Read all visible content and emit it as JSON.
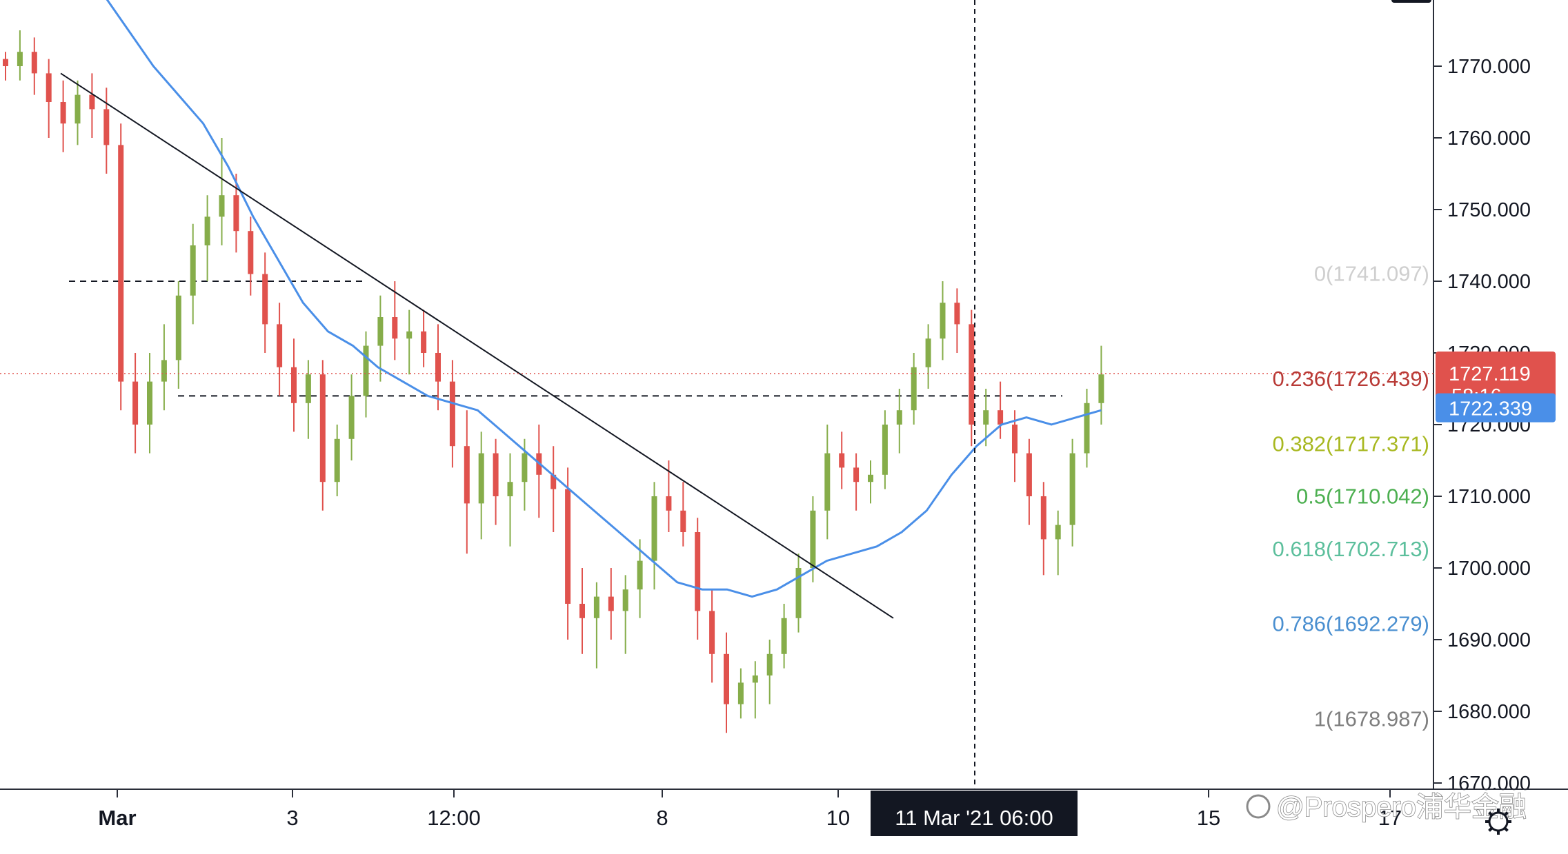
{
  "chart_data": {
    "type": "candlestick",
    "ylim": [
      1666,
      1780
    ],
    "y_ticks": [
      "1670.000",
      "1680.000",
      "1690.000",
      "1700.000",
      "1710.000",
      "1720.000",
      "1730.000",
      "1740.000",
      "1750.000",
      "1760.000",
      "1770.000"
    ],
    "x_labels": [
      "Mar",
      "3",
      "12:00",
      "8",
      "10",
      "15",
      "17"
    ],
    "crosshair_label": "11 Mar '21   06:00",
    "fib_levels": [
      {
        "ratio": "0",
        "value": 1741.097,
        "label": "0(1741.097)",
        "color": "#cfcfcf"
      },
      {
        "ratio": "0.236",
        "value": 1726.439,
        "label": "0.236(1726.439)",
        "color": "#b83a36"
      },
      {
        "ratio": "0.382",
        "value": 1717.371,
        "label": "0.382(1717.371)",
        "color": "#a8b820"
      },
      {
        "ratio": "0.5",
        "value": 1710.042,
        "label": "0.5(1710.042)",
        "color": "#4caf50"
      },
      {
        "ratio": "0.618",
        "value": 1702.713,
        "label": "0.618(1702.713)",
        "color": "#5cbf9c"
      },
      {
        "ratio": "0.786",
        "value": 1692.279,
        "label": "0.786(1692.279)",
        "color": "#4a8fd0"
      },
      {
        "ratio": "1",
        "value": 1678.987,
        "label": "1(1678.987)",
        "color": "#7e7e7e"
      }
    ],
    "last_price": {
      "value": 1727.119,
      "label": "1727.119",
      "countdown": "58:16",
      "color": "#e0524d"
    },
    "ma_value": {
      "value": 1722.339,
      "label": "1722.339",
      "color": "#4a8fe8"
    },
    "horizontal_lines": [
      1740,
      1724
    ],
    "trendline": {
      "from": [
        0,
        1769
      ],
      "to": [
        62,
        1693
      ]
    },
    "candles": [
      [
        1771,
        1772,
        1768,
        1770
      ],
      [
        1770,
        1775,
        1768,
        1772
      ],
      [
        1772,
        1774,
        1766,
        1769
      ],
      [
        1769,
        1771,
        1760,
        1765
      ],
      [
        1765,
        1768,
        1758,
        1762
      ],
      [
        1762,
        1768,
        1759,
        1766
      ],
      [
        1766,
        1769,
        1760,
        1764
      ],
      [
        1764,
        1767,
        1755,
        1759
      ],
      [
        1759,
        1762,
        1722,
        1726
      ],
      [
        1726,
        1730,
        1716,
        1720
      ],
      [
        1720,
        1730,
        1716,
        1726
      ],
      [
        1726,
        1734,
        1722,
        1729
      ],
      [
        1729,
        1740,
        1725,
        1738
      ],
      [
        1738,
        1748,
        1734,
        1745
      ],
      [
        1745,
        1752,
        1740,
        1749
      ],
      [
        1749,
        1760,
        1745,
        1752
      ],
      [
        1752,
        1755,
        1744,
        1747
      ],
      [
        1747,
        1749,
        1738,
        1741
      ],
      [
        1741,
        1744,
        1730,
        1734
      ],
      [
        1734,
        1737,
        1724,
        1728
      ],
      [
        1728,
        1732,
        1719,
        1723
      ],
      [
        1723,
        1729,
        1718,
        1727
      ],
      [
        1727,
        1729,
        1708,
        1712
      ],
      [
        1712,
        1720,
        1710,
        1718
      ],
      [
        1718,
        1727,
        1715,
        1724
      ],
      [
        1724,
        1733,
        1721,
        1731
      ],
      [
        1731,
        1738,
        1726,
        1735
      ],
      [
        1735,
        1740,
        1729,
        1732
      ],
      [
        1732,
        1736,
        1727,
        1733
      ],
      [
        1733,
        1736,
        1728,
        1730
      ],
      [
        1730,
        1734,
        1722,
        1726
      ],
      [
        1726,
        1729,
        1714,
        1717
      ],
      [
        1717,
        1722,
        1702,
        1709
      ],
      [
        1709,
        1719,
        1704,
        1716
      ],
      [
        1716,
        1718,
        1706,
        1710
      ],
      [
        1710,
        1716,
        1703,
        1712
      ],
      [
        1712,
        1718,
        1708,
        1716
      ],
      [
        1716,
        1720,
        1707,
        1713
      ],
      [
        1713,
        1717,
        1705,
        1711
      ],
      [
        1711,
        1714,
        1690,
        1695
      ],
      [
        1695,
        1700,
        1688,
        1693
      ],
      [
        1693,
        1698,
        1686,
        1696
      ],
      [
        1696,
        1700,
        1690,
        1694
      ],
      [
        1694,
        1699,
        1688,
        1697
      ],
      [
        1697,
        1704,
        1693,
        1701
      ],
      [
        1701,
        1712,
        1697,
        1710
      ],
      [
        1710,
        1715,
        1705,
        1708
      ],
      [
        1708,
        1712,
        1703,
        1705
      ],
      [
        1705,
        1707,
        1690,
        1694
      ],
      [
        1694,
        1697,
        1684,
        1688
      ],
      [
        1688,
        1691,
        1677,
        1681
      ],
      [
        1681,
        1686,
        1679,
        1684
      ],
      [
        1684,
        1687,
        1679,
        1685
      ],
      [
        1685,
        1690,
        1681,
        1688
      ],
      [
        1688,
        1695,
        1686,
        1693
      ],
      [
        1693,
        1702,
        1691,
        1700
      ],
      [
        1700,
        1710,
        1698,
        1708
      ],
      [
        1708,
        1720,
        1704,
        1716
      ],
      [
        1716,
        1719,
        1711,
        1714
      ],
      [
        1714,
        1716,
        1708,
        1712
      ],
      [
        1712,
        1715,
        1709,
        1713
      ],
      [
        1713,
        1722,
        1711,
        1720
      ],
      [
        1720,
        1725,
        1716,
        1722
      ],
      [
        1722,
        1730,
        1720,
        1728
      ],
      [
        1728,
        1734,
        1725,
        1732
      ],
      [
        1732,
        1740,
        1729,
        1737
      ],
      [
        1737,
        1739,
        1730,
        1734
      ],
      [
        1734,
        1736,
        1717,
        1720
      ],
      [
        1720,
        1725,
        1717,
        1722
      ],
      [
        1722,
        1726,
        1718,
        1720
      ],
      [
        1720,
        1722,
        1712,
        1716
      ],
      [
        1716,
        1718,
        1706,
        1710
      ],
      [
        1710,
        1712,
        1699,
        1704
      ],
      [
        1704,
        1708,
        1699,
        1706
      ],
      [
        1706,
        1718,
        1703,
        1716
      ],
      [
        1716,
        1725,
        1714,
        1723
      ],
      [
        1723,
        1731,
        1720,
        1727
      ]
    ],
    "ma": [
      1780,
      1775,
      1770,
      1766,
      1762,
      1756,
      1749,
      1743,
      1737,
      1733,
      1731,
      1728,
      1726,
      1724,
      1723,
      1722,
      1719,
      1716,
      1713,
      1710,
      1707,
      1704,
      1701,
      1698,
      1697,
      1697,
      1696,
      1697,
      1699,
      1701,
      1702,
      1703,
      1705,
      1708,
      1713,
      1717,
      1720,
      1721,
      1720,
      1721,
      1722
    ]
  },
  "watermark": "@Prospero浦华金融"
}
